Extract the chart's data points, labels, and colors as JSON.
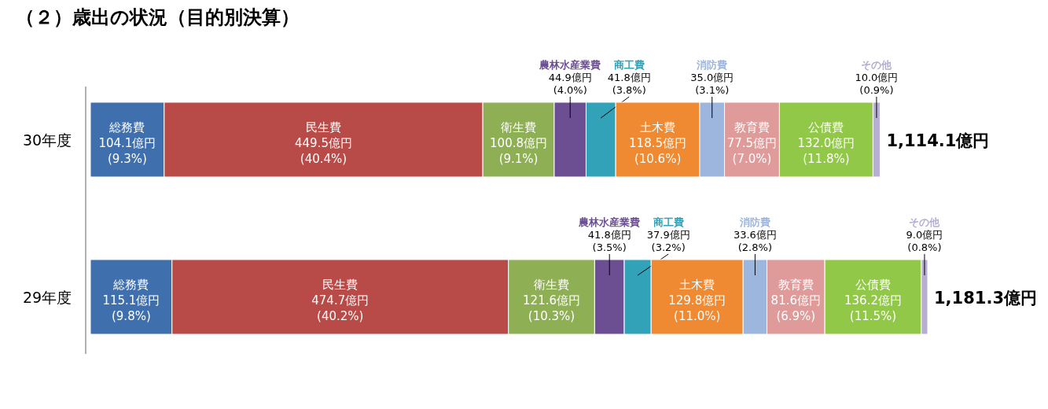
{
  "chart_data": {
    "type": "bar",
    "orientation": "horizontal",
    "stacked": true,
    "title": "（２）歳出の状況（目的別決算）",
    "categories": [
      "30年度",
      "29年度"
    ],
    "series": [
      {
        "name": "総務費",
        "color": "#3f6fad",
        "values": [
          104.1,
          115.1
        ],
        "value_labels": [
          "104.1億円 (9.3%)",
          "115.1億円 (9.8%)"
        ]
      },
      {
        "name": "民生費",
        "color": "#b84a47",
        "values": [
          449.5,
          474.7
        ],
        "value_labels": [
          "449.5億円 (40.4%)",
          "474.7億円 (40.2%)"
        ]
      },
      {
        "name": "衛生費",
        "color": "#8faf55",
        "values": [
          100.8,
          121.6
        ],
        "value_labels": [
          "100.8億円 (9.1%)",
          "121.6億円 (10.3%)"
        ]
      },
      {
        "name": "農林水産業費",
        "color": "#6b4f92",
        "values": [
          44.9,
          41.8
        ],
        "value_labels": [
          "44.9億円 (4.0%)",
          "41.8億円 (3.5%)"
        ]
      },
      {
        "name": "商工費",
        "color": "#31a2b8",
        "values": [
          41.8,
          37.9
        ],
        "value_labels": [
          "41.8億円 (3.8%)",
          "37.9億円 (3.2%)"
        ]
      },
      {
        "name": "土木費",
        "color": "#ef8a32",
        "values": [
          118.5,
          129.8
        ],
        "value_labels": [
          "118.5億円 (10.6%)",
          "129.8億円 (11.0%)"
        ]
      },
      {
        "name": "消防費",
        "color": "#9db6de",
        "values": [
          35.0,
          33.6
        ],
        "value_labels": [
          "35.0億円 (3.1%)",
          "33.6億円 (2.8%)"
        ]
      },
      {
        "name": "教育費",
        "color": "#de9b9a",
        "values": [
          77.5,
          81.6
        ],
        "value_labels": [
          "77.5億円 (7.0%)",
          "81.6億円 (6.9%)"
        ]
      },
      {
        "name": "公債費",
        "color": "#92c848",
        "values": [
          132.0,
          136.2
        ],
        "value_labels": [
          "132.0億円 (11.8%)",
          "136.2億円 (11.5%)"
        ]
      },
      {
        "name": "その他",
        "color": "#b7aed3",
        "values": [
          10.0,
          9.0
        ],
        "value_labels": [
          "10.0億円 (0.9%)",
          "9.0億円 (0.8%)"
        ]
      }
    ],
    "totals": [
      "1,114.1億円",
      "1,181.3億円"
    ]
  }
}
